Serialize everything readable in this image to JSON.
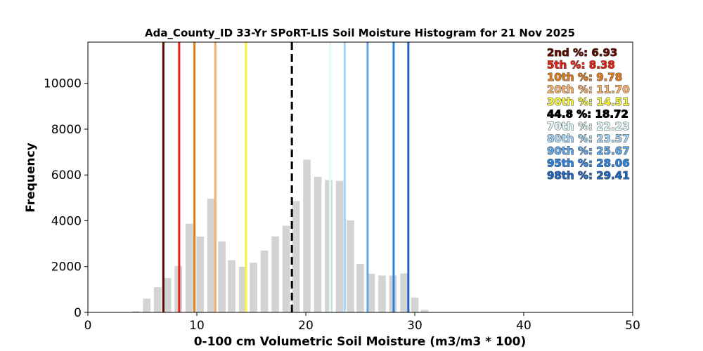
{
  "chart_data": {
    "type": "bar",
    "title": "Ada_County_ID 33-Yr SPoRT-LIS Soil Moisture Histogram for 21 Nov 2025",
    "xlabel": "0-100 cm Volumetric Soil Moisture (m3/m3 * 100)",
    "ylabel": "Frequency",
    "xlim": [
      0,
      50
    ],
    "ylim": [
      0,
      11800
    ],
    "x_ticks": [
      0,
      10,
      20,
      30,
      40,
      50
    ],
    "y_ticks": [
      0,
      2000,
      4000,
      6000,
      8000,
      10000
    ],
    "bar_color": "#d3d3d3",
    "bin_width": 0.98,
    "bar_width_fraction": 0.7,
    "bins": {
      "centers": [
        4.4,
        5.4,
        6.4,
        7.3,
        8.3,
        9.3,
        10.3,
        11.3,
        12.3,
        13.2,
        14.2,
        15.2,
        16.2,
        17.2,
        18.2,
        19.1,
        20.1,
        21.1,
        22.1,
        23.1,
        24.1,
        25.0,
        26.0,
        27.0,
        28.0,
        29.0,
        30.0,
        30.9,
        31.9
      ],
      "frequencies": [
        50,
        600,
        1100,
        1500,
        2030,
        3870,
        3310,
        4960,
        3100,
        2280,
        1990,
        2170,
        2700,
        3320,
        3780,
        4860,
        6670,
        5920,
        5780,
        5740,
        4020,
        2120,
        1690,
        1610,
        1610,
        1700,
        650,
        110,
        0
      ]
    },
    "vertical_lines": [
      {
        "label": "2nd %",
        "value": 6.93,
        "display": "2nd %: 6.93",
        "color": "#5c0a00",
        "style": "solid"
      },
      {
        "label": "5th %",
        "value": 8.38,
        "display": "5th %: 8.38",
        "color": "#e81d0f",
        "style": "solid"
      },
      {
        "label": "10th %",
        "value": 9.78,
        "display": "10th %: 9.78",
        "color": "#e07b1a",
        "style": "solid"
      },
      {
        "label": "20th %",
        "value": 11.7,
        "display": "20th %: 11.70",
        "color": "#f7b06b",
        "style": "solid"
      },
      {
        "label": "30th %",
        "value": 14.51,
        "display": "30th %: 14.51",
        "color": "#f6f53c",
        "style": "solid"
      },
      {
        "label": "44.8 %",
        "value": 18.72,
        "display": "44.8 %: 18.72",
        "color": "#000000",
        "style": "dashed"
      },
      {
        "label": "70th %",
        "value": 22.23,
        "display": "70th %: 22.23",
        "color": "#e1fbfb",
        "style": "solid"
      },
      {
        "label": "80th %",
        "value": 23.57,
        "display": "80th %: 23.57",
        "color": "#a7d4f3",
        "style": "solid"
      },
      {
        "label": "90th %",
        "value": 25.67,
        "display": "90th %: 25.67",
        "color": "#63a5e9",
        "style": "solid"
      },
      {
        "label": "95th %",
        "value": 28.06,
        "display": "95th %: 28.06",
        "color": "#2a82e0",
        "style": "solid"
      },
      {
        "label": "98th %",
        "value": 29.41,
        "display": "98th %: 29.41",
        "color": "#1d64c0",
        "style": "solid"
      }
    ],
    "legend_placement": "top-right",
    "grid": false
  }
}
